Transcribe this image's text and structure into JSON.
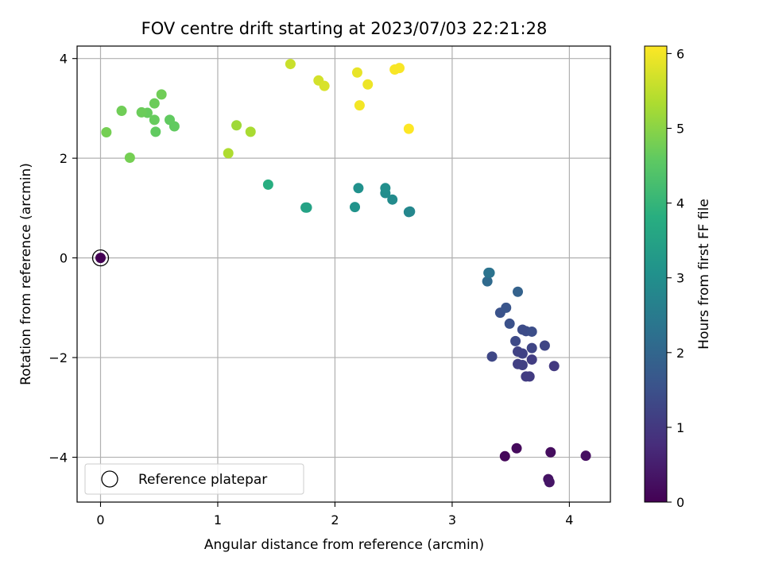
{
  "chart_data": {
    "type": "scatter",
    "title": "FOV centre drift starting at 2023/07/03 22:21:28",
    "xlabel": "Angular distance from reference (arcmin)",
    "ylabel": "Rotation from reference (arcmin)",
    "xlim": [
      -0.2,
      4.35
    ],
    "ylim": [
      -4.9,
      4.25
    ],
    "xticks": [
      0,
      1,
      2,
      3,
      4
    ],
    "yticks": [
      -4,
      -2,
      0,
      2,
      4
    ],
    "grid": true,
    "legend": {
      "position": "lower-left",
      "entries": [
        "Reference platepar"
      ]
    },
    "colorbar": {
      "label": "Hours from first FF file",
      "range": [
        0,
        6.1
      ],
      "ticks": [
        0,
        1,
        2,
        3,
        4,
        5,
        6
      ],
      "colormap": "viridis"
    },
    "reference_point": {
      "x": 0,
      "y": 0
    },
    "points": [
      {
        "x": 0.0,
        "y": 0.0,
        "h": 0.0
      },
      {
        "x": 3.45,
        "y": -3.98,
        "h": 0.1
      },
      {
        "x": 3.55,
        "y": -3.82,
        "h": 0.15
      },
      {
        "x": 3.84,
        "y": -3.9,
        "h": 0.2
      },
      {
        "x": 4.14,
        "y": -3.97,
        "h": 0.25
      },
      {
        "x": 3.82,
        "y": -4.44,
        "h": 0.3
      },
      {
        "x": 3.83,
        "y": -4.5,
        "h": 0.35
      },
      {
        "x": 3.87,
        "y": -2.17,
        "h": 1.0
      },
      {
        "x": 3.66,
        "y": -2.38,
        "h": 1.05
      },
      {
        "x": 3.63,
        "y": -2.38,
        "h": 1.1
      },
      {
        "x": 3.68,
        "y": -2.04,
        "h": 1.1
      },
      {
        "x": 3.6,
        "y": -2.15,
        "h": 1.15
      },
      {
        "x": 3.56,
        "y": -2.13,
        "h": 1.15
      },
      {
        "x": 3.6,
        "y": -1.92,
        "h": 1.2
      },
      {
        "x": 3.56,
        "y": -1.88,
        "h": 1.2
      },
      {
        "x": 3.68,
        "y": -1.81,
        "h": 1.25
      },
      {
        "x": 3.79,
        "y": -1.76,
        "h": 1.25
      },
      {
        "x": 3.34,
        "y": -1.98,
        "h": 1.3
      },
      {
        "x": 3.54,
        "y": -1.67,
        "h": 1.35
      },
      {
        "x": 3.6,
        "y": -1.44,
        "h": 1.4
      },
      {
        "x": 3.63,
        "y": -1.47,
        "h": 1.4
      },
      {
        "x": 3.68,
        "y": -1.48,
        "h": 1.45
      },
      {
        "x": 3.49,
        "y": -1.32,
        "h": 1.5
      },
      {
        "x": 3.41,
        "y": -1.1,
        "h": 1.55
      },
      {
        "x": 3.46,
        "y": -1.0,
        "h": 1.6
      },
      {
        "x": 3.56,
        "y": -0.68,
        "h": 1.9
      },
      {
        "x": 3.3,
        "y": -0.47,
        "h": 2.1
      },
      {
        "x": 3.32,
        "y": -0.3,
        "h": 2.3
      },
      {
        "x": 3.31,
        "y": -0.3,
        "h": 2.3
      },
      {
        "x": 2.63,
        "y": 0.92,
        "h": 2.8
      },
      {
        "x": 2.64,
        "y": 0.93,
        "h": 2.8
      },
      {
        "x": 2.49,
        "y": 1.17,
        "h": 2.9
      },
      {
        "x": 2.43,
        "y": 1.3,
        "h": 2.95
      },
      {
        "x": 2.43,
        "y": 1.4,
        "h": 3.0
      },
      {
        "x": 2.2,
        "y": 1.4,
        "h": 3.05
      },
      {
        "x": 2.17,
        "y": 1.02,
        "h": 3.1
      },
      {
        "x": 1.76,
        "y": 1.01,
        "h": 3.5
      },
      {
        "x": 1.75,
        "y": 1.01,
        "h": 3.5
      },
      {
        "x": 1.43,
        "y": 1.47,
        "h": 3.8
      },
      {
        "x": 0.63,
        "y": 2.64,
        "h": 4.6
      },
      {
        "x": 0.59,
        "y": 2.77,
        "h": 4.6
      },
      {
        "x": 0.47,
        "y": 2.53,
        "h": 4.6
      },
      {
        "x": 0.46,
        "y": 2.77,
        "h": 4.65
      },
      {
        "x": 0.4,
        "y": 2.91,
        "h": 4.65
      },
      {
        "x": 0.35,
        "y": 2.92,
        "h": 4.7
      },
      {
        "x": 0.46,
        "y": 3.1,
        "h": 4.7
      },
      {
        "x": 0.52,
        "y": 3.28,
        "h": 4.75
      },
      {
        "x": 0.18,
        "y": 2.95,
        "h": 4.75
      },
      {
        "x": 0.05,
        "y": 2.52,
        "h": 4.8
      },
      {
        "x": 0.25,
        "y": 2.01,
        "h": 4.8
      },
      {
        "x": 1.16,
        "y": 2.66,
        "h": 5.2
      },
      {
        "x": 1.28,
        "y": 2.53,
        "h": 5.3
      },
      {
        "x": 1.09,
        "y": 2.1,
        "h": 5.35
      },
      {
        "x": 1.62,
        "y": 3.89,
        "h": 5.6
      },
      {
        "x": 1.86,
        "y": 3.56,
        "h": 5.7
      },
      {
        "x": 1.91,
        "y": 3.45,
        "h": 5.75
      },
      {
        "x": 2.19,
        "y": 3.72,
        "h": 5.9
      },
      {
        "x": 2.28,
        "y": 3.48,
        "h": 5.95
      },
      {
        "x": 2.21,
        "y": 3.06,
        "h": 6.0
      },
      {
        "x": 2.51,
        "y": 3.78,
        "h": 6.05
      },
      {
        "x": 2.55,
        "y": 3.81,
        "h": 6.05
      },
      {
        "x": 2.63,
        "y": 2.59,
        "h": 6.1
      }
    ]
  }
}
